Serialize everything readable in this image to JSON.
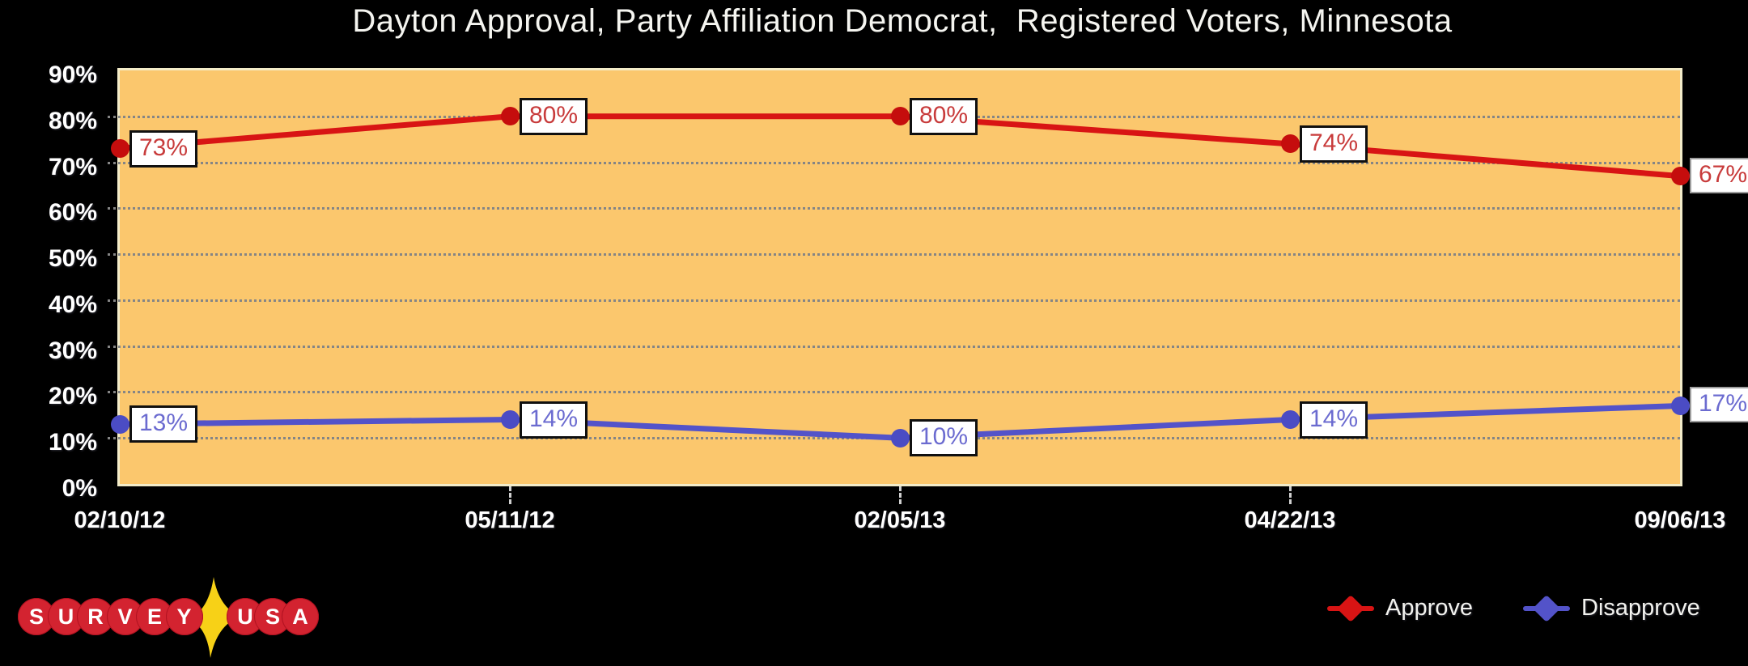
{
  "title": "Dayton Approval, Party Affiliation Democrat,  Registered Voters, Minnesota",
  "chart_data": {
    "type": "line",
    "categories": [
      "02/10/12",
      "05/11/12",
      "02/05/13",
      "04/22/13",
      "09/06/13"
    ],
    "series": [
      {
        "name": "Approve",
        "values": [
          73,
          80,
          80,
          74,
          67
        ],
        "point_labels": [
          "73%",
          "80%",
          "80%",
          "74%",
          "67%"
        ],
        "line_color": "#d81414",
        "point_color": "#c50d0d",
        "label_text_color": "#c83b3b"
      },
      {
        "name": "Disapprove",
        "values": [
          13,
          14,
          10,
          14,
          17
        ],
        "point_labels": [
          "13%",
          "14%",
          "10%",
          "14%",
          "17%"
        ],
        "line_color": "#5353c9",
        "point_color": "#4b4cc4",
        "label_text_color": "#6b6bd0"
      }
    ],
    "title": "Dayton Approval, Party Affiliation Democrat,  Registered Voters, Minnesota",
    "xlabel": "",
    "ylabel": "",
    "ylim": [
      0,
      90
    ],
    "y_tick_labels": [
      "90%",
      "80%",
      "70%",
      "60%",
      "50%",
      "40%",
      "30%",
      "20%",
      "10%",
      "0%"
    ],
    "y_tick_values": [
      90,
      80,
      70,
      60,
      50,
      40,
      30,
      20,
      10,
      0
    ],
    "gridline_values": [
      80,
      70,
      60,
      50,
      40,
      30,
      20,
      10
    ],
    "grid": "horizontal dotted",
    "legend_position": "bottom-right",
    "plot_background": "#fbc76d",
    "page_background": "#000000"
  },
  "legend": {
    "items": [
      {
        "label": "Approve",
        "color": "#d81414"
      },
      {
        "label": "Disapprove",
        "color": "#5353c9"
      }
    ]
  },
  "logo": {
    "name": "SurveyUSA",
    "letters_survey": [
      "S",
      "U",
      "R",
      "V",
      "E",
      "Y"
    ],
    "letters_usa": [
      "U",
      "S",
      "A"
    ],
    "circle_color": "#d32330",
    "star_color": "#f7d117"
  }
}
